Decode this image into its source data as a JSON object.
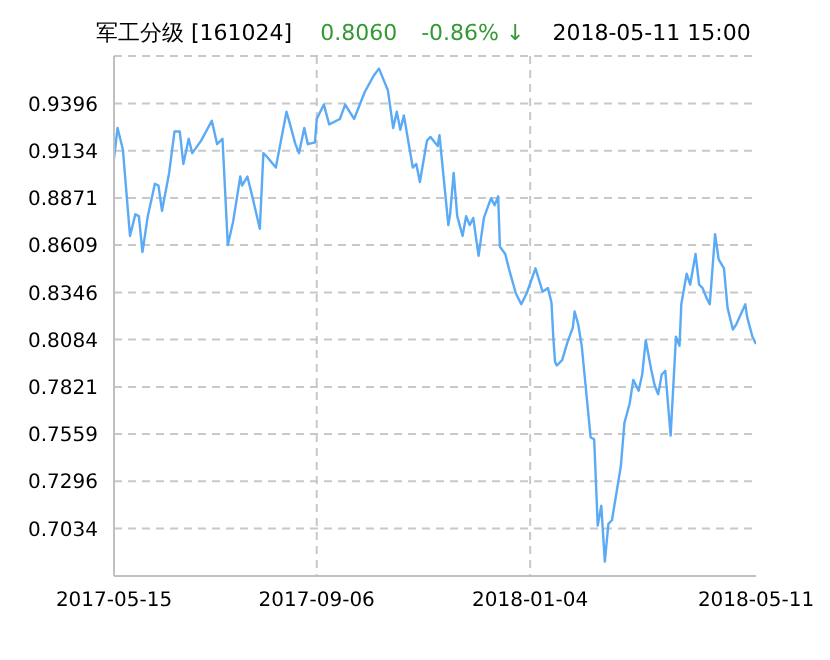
{
  "chart_data": {
    "type": "line",
    "title": "军工分级 [161024]",
    "annotations": [
      "0.8060",
      "-0.86% ↓",
      "2018-05-11 15:00"
    ],
    "x": [
      "2017-05-15",
      "2017-05-17",
      "2017-05-20",
      "2017-05-24",
      "2017-05-27",
      "2017-05-29",
      "2017-05-31",
      "2017-06-03",
      "2017-06-07",
      "2017-06-09",
      "2017-06-11",
      "2017-06-15",
      "2017-06-18",
      "2017-06-21",
      "2017-06-23",
      "2017-06-26",
      "2017-06-28",
      "2017-07-03",
      "2017-07-09",
      "2017-07-12",
      "2017-07-15",
      "2017-07-18",
      "2017-07-21",
      "2017-07-25",
      "2017-07-26",
      "2017-07-29",
      "2017-08-01",
      "2017-08-05",
      "2017-08-07",
      "2017-08-09",
      "2017-08-14",
      "2017-08-20",
      "2017-08-22",
      "2017-08-25",
      "2017-08-27",
      "2017-08-30",
      "2017-09-01",
      "2017-09-05",
      "2017-09-06",
      "2017-09-10",
      "2017-09-13",
      "2017-09-19",
      "2017-09-22",
      "2017-09-27",
      "2017-10-03",
      "2017-10-08",
      "2017-10-11",
      "2017-10-16",
      "2017-10-19",
      "2017-10-21",
      "2017-10-23",
      "2017-10-25",
      "2017-10-30",
      "2017-11-01",
      "2017-11-03",
      "2017-11-07",
      "2017-11-09",
      "2017-11-13",
      "2017-11-14",
      "2017-11-19",
      "2017-11-20",
      "2017-11-22",
      "2017-11-24",
      "2017-11-27",
      "2017-11-29",
      "2017-12-01",
      "2017-12-03",
      "2017-12-06",
      "2017-12-09",
      "2017-12-13",
      "2017-12-15",
      "2017-12-17",
      "2017-12-18",
      "2017-12-21",
      "2017-12-23",
      "2017-12-27",
      "2017-12-30",
      "2018-01-02",
      "2018-01-07",
      "2018-01-11",
      "2018-01-14",
      "2018-01-16",
      "2018-01-17",
      "2018-01-18",
      "2018-01-19",
      "2018-01-22",
      "2018-01-25",
      "2018-01-28",
      "2018-01-29",
      "2018-01-31",
      "2018-02-02",
      "2018-02-07",
      "2018-02-09",
      "2018-02-11",
      "2018-02-13",
      "2018-02-15",
      "2018-02-17",
      "2018-02-19",
      "2018-02-24",
      "2018-02-26",
      "2018-03-01",
      "2018-03-03",
      "2018-03-06",
      "2018-03-08",
      "2018-03-10",
      "2018-03-13",
      "2018-03-15",
      "2018-03-17",
      "2018-03-19",
      "2018-03-21",
      "2018-03-24",
      "2018-03-27",
      "2018-03-29",
      "2018-03-30",
      "2018-04-02",
      "2018-04-04",
      "2018-04-07",
      "2018-04-09",
      "2018-04-11",
      "2018-04-13",
      "2018-04-15",
      "2018-04-18",
      "2018-04-20",
      "2018-04-23",
      "2018-04-25",
      "2018-04-28",
      "2018-04-30",
      "2018-05-05",
      "2018-05-06",
      "2018-05-09",
      "2018-05-11"
    ],
    "series": [
      {
        "color": "#5aaaf5",
        "values": [
          0.909,
          0.926,
          0.914,
          0.866,
          0.878,
          0.877,
          0.857,
          0.877,
          0.895,
          0.894,
          0.88,
          0.901,
          0.924,
          0.924,
          0.906,
          0.92,
          0.912,
          0.919,
          0.93,
          0.917,
          0.92,
          0.861,
          0.874,
          0.899,
          0.894,
          0.899,
          0.887,
          0.87,
          0.912,
          0.91,
          0.904,
          0.935,
          0.928,
          0.917,
          0.912,
          0.926,
          0.917,
          0.918,
          0.931,
          0.939,
          0.928,
          0.931,
          0.939,
          0.931,
          0.946,
          0.955,
          0.959,
          0.947,
          0.926,
          0.935,
          0.925,
          0.933,
          0.904,
          0.906,
          0.896,
          0.919,
          0.921,
          0.916,
          0.922,
          0.872,
          0.878,
          0.901,
          0.877,
          0.866,
          0.877,
          0.872,
          0.876,
          0.855,
          0.876,
          0.887,
          0.883,
          0.888,
          0.86,
          0.856,
          0.848,
          0.834,
          0.828,
          0.834,
          0.848,
          0.835,
          0.837,
          0.829,
          0.81,
          0.796,
          0.794,
          0.797,
          0.807,
          0.815,
          0.824,
          0.817,
          0.805,
          0.754,
          0.753,
          0.705,
          0.716,
          0.685,
          0.706,
          0.708,
          0.738,
          0.762,
          0.773,
          0.786,
          0.78,
          0.789,
          0.808,
          0.792,
          0.783,
          0.778,
          0.789,
          0.791,
          0.755,
          0.81,
          0.805,
          0.828,
          0.845,
          0.839,
          0.856,
          0.839,
          0.837,
          0.832,
          0.828,
          0.867,
          0.853,
          0.848,
          0.826,
          0.814,
          0.817,
          0.828,
          0.821,
          0.81,
          0.806
        ]
      }
    ],
    "xlim": [
      "2017-05-15",
      "2018-05-11"
    ],
    "xticks": [
      "2017-05-15",
      "2017-09-06",
      "2018-01-04",
      "2018-05-11"
    ],
    "ylim": [
      0.677,
      0.966
    ],
    "yticks": [
      0.7034,
      0.7296,
      0.7559,
      0.7821,
      0.8084,
      0.8346,
      0.8609,
      0.8871,
      0.9134,
      0.9396
    ],
    "grid": true,
    "line_style": "solid",
    "marker": "none"
  }
}
